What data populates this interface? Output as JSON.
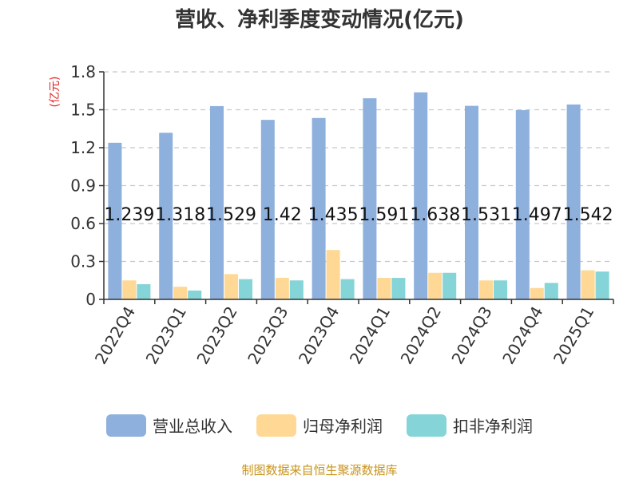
{
  "chart_data": {
    "type": "bar",
    "title": "营收、净利季度变动情况(亿元)",
    "ylabel": "(亿元)",
    "xlabel": "",
    "ylim": [
      0,
      1.8
    ],
    "yticks": [
      "0",
      "0.3",
      "0.6",
      "0.9",
      "1.2",
      "1.5",
      "1.8"
    ],
    "ytick_values": [
      0,
      0.3,
      0.6,
      0.9,
      1.2,
      1.5,
      1.8
    ],
    "grid": true,
    "legend_position": "bottom",
    "categories": [
      "2022Q4",
      "2023Q1",
      "2023Q2",
      "2023Q3",
      "2023Q4",
      "2024Q1",
      "2024Q2",
      "2024Q3",
      "2024Q4",
      "2025Q1"
    ],
    "series": [
      {
        "name": "营业总收入",
        "color": "#8eb0dc",
        "values": [
          1.239,
          1.318,
          1.529,
          1.42,
          1.435,
          1.591,
          1.638,
          1.531,
          1.497,
          1.542
        ],
        "labels": [
          "1.239",
          "1.318",
          "1.529",
          "1.42",
          "1.435",
          "1.591",
          "1.638",
          "1.531",
          "1.497",
          "1.542"
        ]
      },
      {
        "name": "归母净利润",
        "color": "#fed894",
        "values": [
          0.15,
          0.1,
          0.2,
          0.17,
          0.39,
          0.17,
          0.21,
          0.15,
          0.09,
          0.23
        ]
      },
      {
        "name": "扣非净利润",
        "color": "#84d4d8",
        "values": [
          0.12,
          0.07,
          0.16,
          0.15,
          0.16,
          0.17,
          0.21,
          0.15,
          0.13,
          0.22
        ]
      }
    ]
  },
  "source_text": "制图数据来自恒生聚源数据库",
  "colors": {
    "axis": "#333333",
    "grid": "#c8c8c8",
    "ylabel": "#e02020",
    "source": "#c9941c"
  }
}
